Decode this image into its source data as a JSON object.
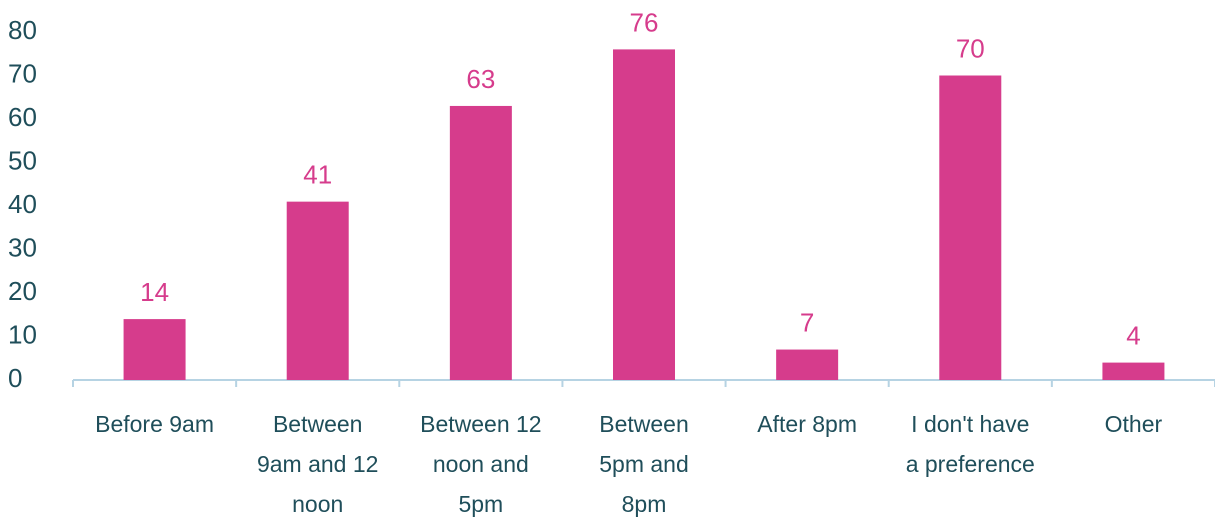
{
  "chart_data": {
    "type": "bar",
    "categories": [
      [
        "Before 9am"
      ],
      [
        "Between",
        "9am and 12",
        "noon"
      ],
      [
        "Between 12",
        "noon and",
        "5pm"
      ],
      [
        "Between",
        "5pm and",
        "8pm"
      ],
      [
        "After 8pm"
      ],
      [
        "I don't have",
        "a preference"
      ],
      [
        "Other"
      ]
    ],
    "values": [
      14,
      41,
      63,
      76,
      7,
      70,
      4
    ],
    "data_labels": [
      "14",
      "41",
      "63",
      "76",
      "7",
      "70",
      "4"
    ],
    "yticks": [
      "0",
      "10",
      "20",
      "30",
      "40",
      "50",
      "60",
      "70",
      "80"
    ],
    "ylim": [
      0,
      80
    ],
    "grid": false,
    "colors": {
      "bar": "#d63c8c",
      "data_label": "#d63c8c",
      "tick_label": "#1f4e5a",
      "axis": "#b6d3e3"
    }
  }
}
